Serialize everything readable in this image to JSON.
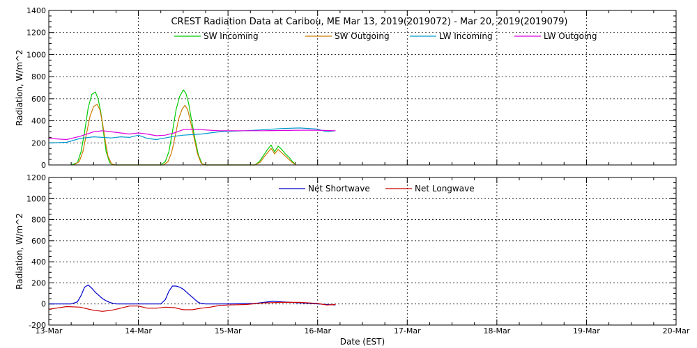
{
  "title": "CREST Radiation Data at Caribou, ME   Mar 13, 2019(2019072) - Mar 20, 2019(2019079)",
  "xlabel": "Date (EST)",
  "chart_data": [
    {
      "type": "line",
      "panel": "top",
      "ylabel": "Radiation, W/m^2",
      "xlabel": "",
      "x_unit": "days since 13-Mar 00:00 EST",
      "xlim": [
        0,
        7
      ],
      "x_ticks": [
        "13-Mar",
        "14-Mar",
        "15-Mar",
        "16-Mar",
        "17-Mar",
        "18-Mar",
        "19-Mar",
        "20-Mar"
      ],
      "x_tick_values": [
        0,
        1,
        2,
        3,
        4,
        5,
        6,
        7
      ],
      "ylim": [
        0,
        1400
      ],
      "y_ticks": [
        0,
        200,
        400,
        600,
        800,
        1000,
        1200,
        1400
      ],
      "grid": true,
      "legend_placement": "top",
      "series": [
        {
          "name": "SW Incoming",
          "color": "#00cc00",
          "x": [
            0.25,
            0.32,
            0.36,
            0.4,
            0.44,
            0.48,
            0.52,
            0.55,
            0.58,
            0.61,
            0.64,
            0.68,
            0.72,
            0.75,
            1.25,
            1.3,
            1.34,
            1.38,
            1.42,
            1.46,
            1.5,
            1.53,
            1.56,
            1.59,
            1.63,
            1.67,
            1.71,
            1.75,
            2.3,
            2.35,
            2.4,
            2.44,
            2.48,
            2.52,
            2.56,
            2.6,
            2.64,
            2.68,
            2.72,
            2.76
          ],
          "y": [
            0,
            20,
            120,
            300,
            520,
            640,
            660,
            600,
            480,
            300,
            120,
            20,
            0,
            0,
            0,
            30,
            120,
            300,
            500,
            620,
            680,
            650,
            560,
            420,
            240,
            90,
            10,
            0,
            0,
            30,
            90,
            140,
            180,
            120,
            170,
            140,
            100,
            70,
            30,
            0
          ]
        },
        {
          "name": "SW Outgoing",
          "color": "#cc7a00",
          "x": [
            0.28,
            0.34,
            0.38,
            0.42,
            0.46,
            0.5,
            0.54,
            0.57,
            0.6,
            0.63,
            0.66,
            0.7,
            0.74,
            1.28,
            1.33,
            1.37,
            1.41,
            1.45,
            1.49,
            1.52,
            1.55,
            1.58,
            1.62,
            1.66,
            1.7,
            1.74,
            2.3,
            2.36,
            2.4,
            2.44,
            2.48,
            2.52,
            2.56,
            2.6,
            2.64,
            2.68,
            2.72,
            2.76
          ],
          "y": [
            0,
            30,
            120,
            280,
            440,
            530,
            550,
            500,
            380,
            220,
            80,
            10,
            0,
            0,
            30,
            110,
            260,
            420,
            510,
            540,
            500,
            400,
            250,
            100,
            15,
            0,
            0,
            25,
            70,
            110,
            150,
            100,
            140,
            110,
            80,
            50,
            20,
            0
          ]
        },
        {
          "name": "LW Incoming",
          "color": "#0099cc",
          "x": [
            0.0,
            0.2,
            0.35,
            0.5,
            0.6,
            0.7,
            0.8,
            0.9,
            1.0,
            1.1,
            1.2,
            1.3,
            1.4,
            1.5,
            1.6,
            1.7,
            1.8,
            1.9,
            2.0,
            2.2,
            2.4,
            2.6,
            2.8,
            3.0,
            3.1,
            3.2
          ],
          "y": [
            200,
            205,
            240,
            255,
            250,
            245,
            255,
            250,
            270,
            240,
            230,
            245,
            260,
            270,
            275,
            280,
            290,
            300,
            305,
            310,
            320,
            330,
            335,
            325,
            300,
            310
          ]
        },
        {
          "name": "LW Outgoing",
          "color": "#dd00dd",
          "x": [
            0.0,
            0.2,
            0.35,
            0.5,
            0.6,
            0.7,
            0.8,
            0.9,
            1.0,
            1.1,
            1.2,
            1.3,
            1.4,
            1.5,
            1.6,
            1.7,
            1.8,
            1.9,
            2.0,
            2.2,
            2.4,
            2.6,
            2.8,
            3.0,
            3.1,
            3.2
          ],
          "y": [
            240,
            230,
            260,
            300,
            310,
            300,
            290,
            280,
            290,
            280,
            265,
            270,
            290,
            320,
            325,
            320,
            315,
            310,
            310,
            310,
            310,
            312,
            315,
            315,
            312,
            310
          ]
        }
      ]
    },
    {
      "type": "line",
      "panel": "bottom",
      "ylabel": "Radiation, W/m^2",
      "xlabel": "Date (EST)",
      "x_unit": "days since 13-Mar 00:00 EST",
      "xlim": [
        0,
        7
      ],
      "x_ticks": [
        "13-Mar",
        "14-Mar",
        "15-Mar",
        "16-Mar",
        "17-Mar",
        "18-Mar",
        "19-Mar",
        "20-Mar"
      ],
      "x_tick_values": [
        0,
        1,
        2,
        3,
        4,
        5,
        6,
        7
      ],
      "ylim": [
        -200,
        1200
      ],
      "y_ticks": [
        -200,
        0,
        200,
        400,
        600,
        800,
        1000,
        1200
      ],
      "grid": true,
      "legend_placement": "top",
      "series": [
        {
          "name": "Net Shortwave",
          "color": "#0000cc",
          "x": [
            0.0,
            0.25,
            0.32,
            0.36,
            0.4,
            0.44,
            0.48,
            0.52,
            0.56,
            0.6,
            0.64,
            0.68,
            0.72,
            0.76,
            0.8,
            1.0,
            1.25,
            1.3,
            1.34,
            1.38,
            1.42,
            1.46,
            1.5,
            1.54,
            1.58,
            1.62,
            1.66,
            1.7,
            1.75,
            2.0,
            2.3,
            2.4,
            2.5,
            2.6,
            2.7,
            2.8,
            3.0,
            3.2
          ],
          "y": [
            0,
            0,
            20,
            80,
            160,
            180,
            150,
            110,
            80,
            50,
            30,
            15,
            5,
            0,
            0,
            0,
            0,
            40,
            120,
            170,
            170,
            160,
            140,
            110,
            80,
            50,
            20,
            5,
            0,
            0,
            5,
            15,
            25,
            20,
            15,
            10,
            0,
            -10
          ]
        },
        {
          "name": "Net Longwave",
          "color": "#cc0000",
          "x": [
            0.0,
            0.2,
            0.35,
            0.5,
            0.6,
            0.7,
            0.8,
            0.9,
            1.0,
            1.1,
            1.2,
            1.3,
            1.4,
            1.5,
            1.6,
            1.7,
            1.8,
            1.9,
            2.0,
            2.2,
            2.4,
            2.6,
            2.8,
            3.0,
            3.1,
            3.2
          ],
          "y": [
            -50,
            -25,
            -30,
            -60,
            -70,
            -60,
            -40,
            -20,
            -20,
            -40,
            -40,
            -30,
            -35,
            -55,
            -55,
            -40,
            -30,
            -15,
            -10,
            -5,
            10,
            15,
            15,
            5,
            -10,
            -5
          ]
        }
      ]
    }
  ]
}
